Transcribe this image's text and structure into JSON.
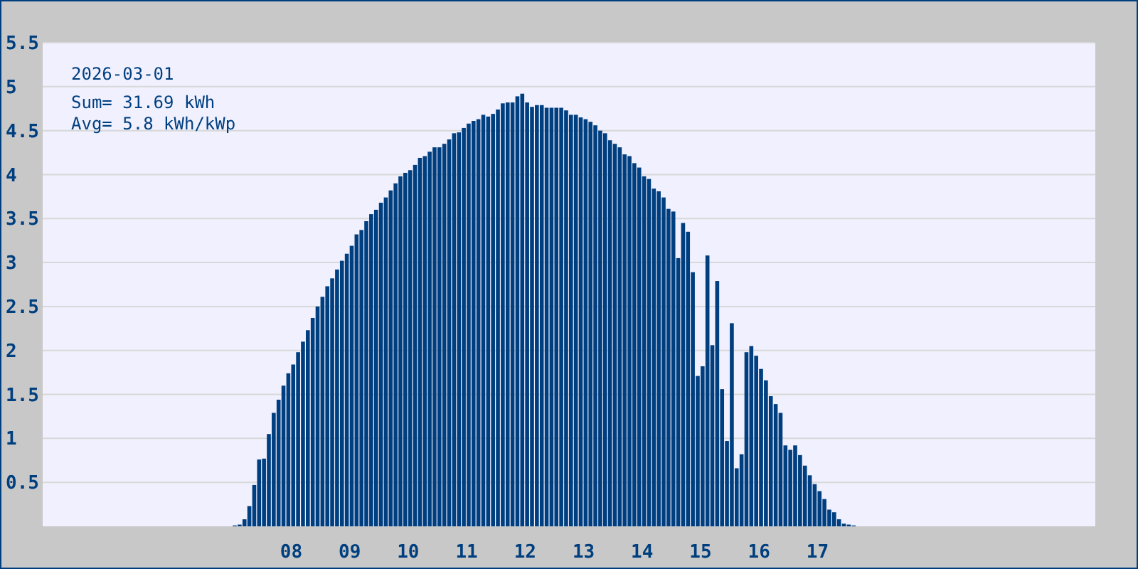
{
  "chart_data": {
    "type": "bar",
    "title": "2026-03-01",
    "annotations": [
      "Sum= 31.69 kWh",
      "Avg= 5.8 kWh/kWp"
    ],
    "x": [
      "2026-03-01T07:00",
      "2026-03-01T07:05",
      "2026-03-01T07:10",
      "2026-03-01T07:15",
      "2026-03-01T07:20",
      "2026-03-01T07:25",
      "2026-03-01T07:30",
      "2026-03-01T07:35",
      "2026-03-01T07:40",
      "2026-03-01T07:45",
      "2026-03-01T07:50",
      "2026-03-01T07:55",
      "2026-03-01T08:00",
      "2026-03-01T08:05",
      "2026-03-01T08:10",
      "2026-03-01T08:15",
      "2026-03-01T08:20",
      "2026-03-01T08:25",
      "2026-03-01T08:30",
      "2026-03-01T08:35",
      "2026-03-01T08:40",
      "2026-03-01T08:45",
      "2026-03-01T08:50",
      "2026-03-01T08:55",
      "2026-03-01T09:00",
      "2026-03-01T09:05",
      "2026-03-01T09:10",
      "2026-03-01T09:15",
      "2026-03-01T09:20",
      "2026-03-01T09:25",
      "2026-03-01T09:30",
      "2026-03-01T09:35",
      "2026-03-01T09:40",
      "2026-03-01T09:45",
      "2026-03-01T09:50",
      "2026-03-01T09:55",
      "2026-03-01T10:00",
      "2026-03-01T10:05",
      "2026-03-01T10:10",
      "2026-03-01T10:15",
      "2026-03-01T10:20",
      "2026-03-01T10:25",
      "2026-03-01T10:30",
      "2026-03-01T10:35",
      "2026-03-01T10:40",
      "2026-03-01T10:45",
      "2026-03-01T10:50",
      "2026-03-01T10:55",
      "2026-03-01T11:00",
      "2026-03-01T11:05",
      "2026-03-01T11:10",
      "2026-03-01T11:15",
      "2026-03-01T11:20",
      "2026-03-01T11:25",
      "2026-03-01T11:30",
      "2026-03-01T11:35",
      "2026-03-01T11:40",
      "2026-03-01T11:45",
      "2026-03-01T11:50",
      "2026-03-01T11:55",
      "2026-03-01T12:00",
      "2026-03-01T12:05",
      "2026-03-01T12:10",
      "2026-03-01T12:15",
      "2026-03-01T12:20",
      "2026-03-01T12:25",
      "2026-03-01T12:30",
      "2026-03-01T12:35",
      "2026-03-01T12:40",
      "2026-03-01T12:45",
      "2026-03-01T12:50",
      "2026-03-01T12:55",
      "2026-03-01T13:00",
      "2026-03-01T13:05",
      "2026-03-01T13:10",
      "2026-03-01T13:15",
      "2026-03-01T13:20",
      "2026-03-01T13:25",
      "2026-03-01T13:30",
      "2026-03-01T13:35",
      "2026-03-01T13:40",
      "2026-03-01T13:45",
      "2026-03-01T13:50",
      "2026-03-01T13:55",
      "2026-03-01T14:00",
      "2026-03-01T14:05",
      "2026-03-01T14:10",
      "2026-03-01T14:15",
      "2026-03-01T14:20",
      "2026-03-01T14:25",
      "2026-03-01T14:30",
      "2026-03-01T14:35",
      "2026-03-01T14:40",
      "2026-03-01T14:45",
      "2026-03-01T14:50",
      "2026-03-01T14:55",
      "2026-03-01T15:00",
      "2026-03-01T15:05",
      "2026-03-01T15:10",
      "2026-03-01T15:15",
      "2026-03-01T15:20",
      "2026-03-01T15:25",
      "2026-03-01T15:30",
      "2026-03-01T15:35",
      "2026-03-01T15:40",
      "2026-03-01T15:45",
      "2026-03-01T15:50",
      "2026-03-01T15:55",
      "2026-03-01T16:00",
      "2026-03-01T16:05",
      "2026-03-01T16:10",
      "2026-03-01T16:15",
      "2026-03-01T16:20",
      "2026-03-01T16:25",
      "2026-03-01T16:30",
      "2026-03-01T16:35",
      "2026-03-01T16:40",
      "2026-03-01T16:45",
      "2026-03-01T16:50",
      "2026-03-01T16:55",
      "2026-03-01T17:00",
      "2026-03-01T17:05",
      "2026-03-01T17:10",
      "2026-03-01T17:15",
      "2026-03-01T17:20",
      "2026-03-01T17:25",
      "2026-03-01T17:30",
      "2026-03-01T17:35"
    ],
    "values": [
      0.01,
      0.02,
      0.08,
      0.23,
      0.47,
      0.76,
      0.77,
      1.05,
      1.29,
      1.44,
      1.6,
      1.74,
      1.84,
      1.98,
      2.1,
      2.23,
      2.37,
      2.5,
      2.61,
      2.73,
      2.82,
      2.92,
      3.02,
      3.1,
      3.19,
      3.32,
      3.37,
      3.47,
      3.55,
      3.6,
      3.68,
      3.74,
      3.82,
      3.9,
      3.98,
      4.02,
      4.05,
      4.11,
      4.19,
      4.21,
      4.26,
      4.31,
      4.31,
      4.35,
      4.4,
      4.47,
      4.48,
      4.53,
      4.58,
      4.61,
      4.63,
      4.68,
      4.66,
      4.69,
      4.74,
      4.81,
      4.82,
      4.82,
      4.89,
      4.92,
      4.82,
      4.77,
      4.79,
      4.79,
      4.76,
      4.76,
      4.76,
      4.76,
      4.73,
      4.68,
      4.68,
      4.65,
      4.63,
      4.6,
      4.56,
      4.5,
      4.47,
      4.39,
      4.35,
      4.31,
      4.23,
      4.21,
      4.13,
      4.08,
      3.98,
      3.95,
      3.84,
      3.81,
      3.74,
      3.61,
      3.58,
      3.05,
      3.45,
      3.35,
      2.89,
      1.71,
      1.82,
      3.08,
      2.06,
      2.79,
      1.56,
      0.97,
      2.31,
      0.66,
      0.82,
      1.98,
      2.05,
      1.94,
      1.79,
      1.66,
      1.48,
      1.39,
      1.29,
      0.92,
      0.87,
      0.92,
      0.81,
      0.69,
      0.58,
      0.48,
      0.4,
      0.31,
      0.19,
      0.16,
      0.08,
      0.03,
      0.02,
      0.01
    ],
    "color": "#003f7f",
    "xlim": [
      "2026-03-01T03:45",
      "2026-03-01T21:45"
    ],
    "xticks": [
      {
        "value": "2026-03-01T08:00",
        "label": "08"
      },
      {
        "value": "2026-03-01T09:00",
        "label": "09"
      },
      {
        "value": "2026-03-01T10:00",
        "label": "10"
      },
      {
        "value": "2026-03-01T11:00",
        "label": "11"
      },
      {
        "value": "2026-03-01T12:00",
        "label": "12"
      },
      {
        "value": "2026-03-01T13:00",
        "label": "13"
      },
      {
        "value": "2026-03-01T14:00",
        "label": "14"
      },
      {
        "value": "2026-03-01T15:00",
        "label": "15"
      },
      {
        "value": "2026-03-01T16:00",
        "label": "16"
      },
      {
        "value": "2026-03-01T17:00",
        "label": "17"
      }
    ],
    "ylim": [
      0,
      5.5
    ],
    "yticks": [
      0.5,
      1,
      1.5,
      2,
      2.5,
      3,
      3.5,
      4,
      4.5,
      5,
      5.5
    ],
    "grid": "y"
  }
}
